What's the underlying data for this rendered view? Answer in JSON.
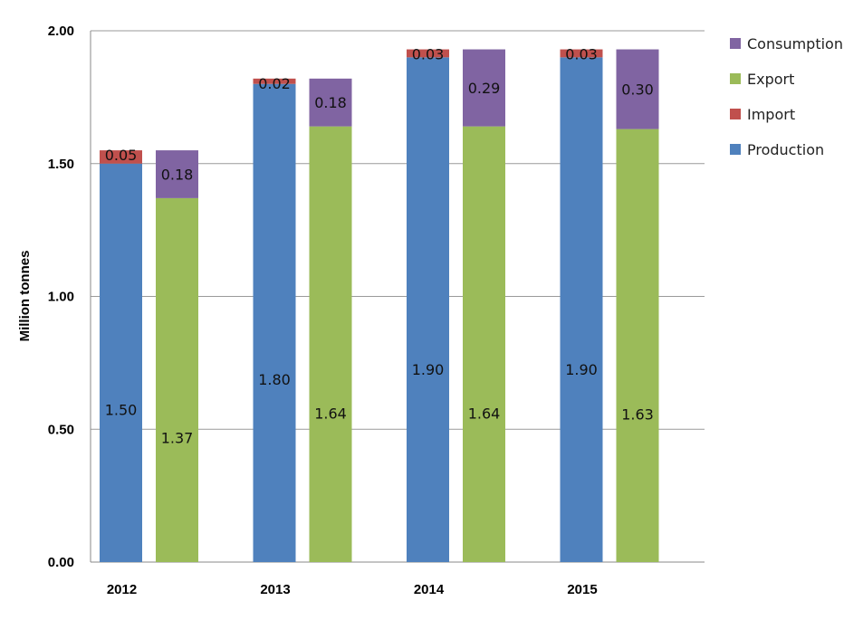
{
  "chart_data": {
    "type": "bar",
    "stacked": true,
    "ylabel": "Million tonnes",
    "xlabel": "",
    "ylim": [
      0,
      2.0
    ],
    "yticks": [
      "0.00",
      "0.50",
      "1.00",
      "1.50",
      "2.00"
    ],
    "grid": true,
    "legend_position": "right",
    "categories": [
      "2012",
      "2013",
      "2014",
      "2015"
    ],
    "series": [
      {
        "name": "Production",
        "color": "#4F81BD",
        "stack": "supply",
        "values": [
          1.5,
          1.8,
          1.9,
          1.9
        ],
        "labels": [
          "1.50",
          "1.80",
          "1.90",
          "1.90"
        ]
      },
      {
        "name": "Import",
        "color": "#C0504D",
        "stack": "supply",
        "values": [
          0.05,
          0.02,
          0.03,
          0.03
        ],
        "labels": [
          "0.05",
          "0.02",
          "0.03",
          "0.03"
        ]
      },
      {
        "name": "Export",
        "color": "#9BBB59",
        "stack": "demand",
        "values": [
          1.37,
          1.64,
          1.64,
          1.63
        ],
        "labels": [
          "1.37",
          "1.64",
          "1.64",
          "1.63"
        ]
      },
      {
        "name": "Consumption",
        "color": "#8064A2",
        "stack": "demand",
        "values": [
          0.18,
          0.18,
          0.29,
          0.3
        ],
        "labels": [
          "0.18",
          "0.18",
          "0.29",
          "0.30"
        ]
      }
    ],
    "legend": [
      {
        "name": "Consumption",
        "color": "#8064A2"
      },
      {
        "name": "Export",
        "color": "#9BBB59"
      },
      {
        "name": "Import",
        "color": "#C0504D"
      },
      {
        "name": "Production",
        "color": "#4F81BD"
      }
    ]
  }
}
